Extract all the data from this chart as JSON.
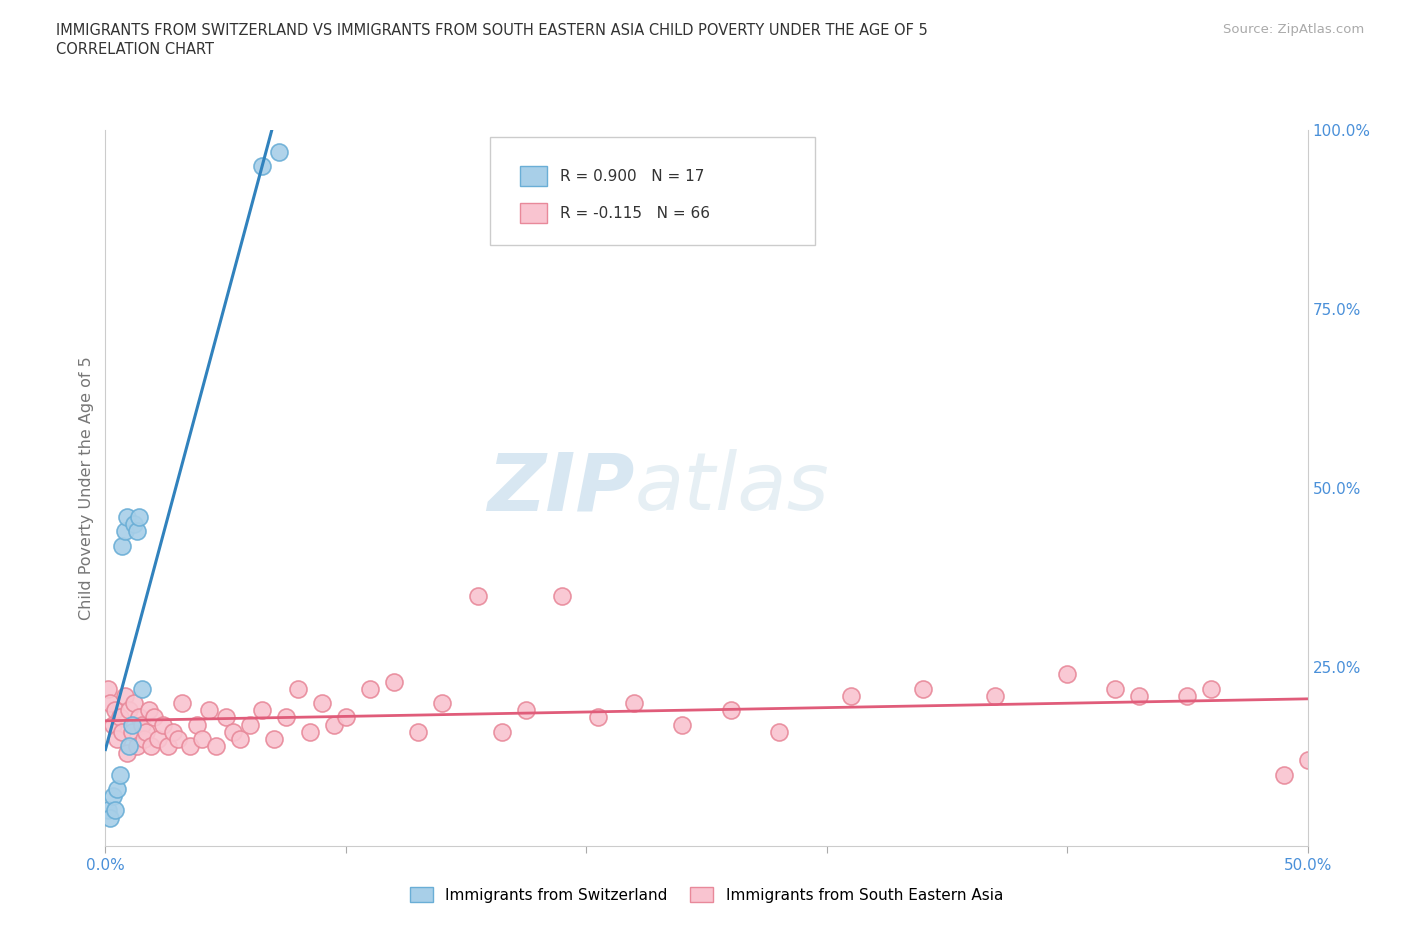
{
  "title_line1": "IMMIGRANTS FROM SWITZERLAND VS IMMIGRANTS FROM SOUTH EASTERN ASIA CHILD POVERTY UNDER THE AGE OF 5",
  "title_line2": "CORRELATION CHART",
  "source_text": "Source: ZipAtlas.com",
  "ylabel": "Child Poverty Under the Age of 5",
  "xlim": [
    0.0,
    0.5
  ],
  "ylim": [
    0.0,
    1.0
  ],
  "x_tick_positions": [
    0.0,
    0.1,
    0.2,
    0.3,
    0.4,
    0.5
  ],
  "x_tick_labels": [
    "0.0%",
    "",
    "",
    "",
    "",
    "50.0%"
  ],
  "y_ticks_right": [
    0.0,
    0.25,
    0.5,
    0.75,
    1.0
  ],
  "y_tick_labels_right": [
    "",
    "25.0%",
    "50.0%",
    "75.0%",
    "100.0%"
  ],
  "blue_color": "#a8cfe8",
  "blue_edge": "#6aaed6",
  "pink_color": "#f9c4d0",
  "pink_edge": "#e8899a",
  "regression_blue_color": "#3182bd",
  "regression_pink_color": "#e05c7a",
  "legend_R_blue": "R = 0.900",
  "legend_N_blue": "N = 17",
  "legend_R_pink": "R = -0.115",
  "legend_N_pink": "N = 66",
  "legend_label_blue": "Immigrants from Switzerland",
  "legend_label_pink": "Immigrants from South Eastern Asia",
  "watermark_zip": "ZIP",
  "watermark_atlas": "atlas",
  "background_color": "#ffffff",
  "grid_color": "#cccccc",
  "title_color": "#333333",
  "axis_label_color": "#777777",
  "tick_color": "#4a90d9",
  "blue_x": [
    0.001,
    0.002,
    0.003,
    0.004,
    0.005,
    0.006,
    0.007,
    0.008,
    0.009,
    0.01,
    0.011,
    0.012,
    0.013,
    0.014,
    0.015,
    0.065,
    0.072
  ],
  "blue_y": [
    0.05,
    0.04,
    0.07,
    0.05,
    0.08,
    0.1,
    0.42,
    0.44,
    0.46,
    0.14,
    0.17,
    0.45,
    0.44,
    0.46,
    0.22,
    0.95,
    0.97
  ],
  "pink_x": [
    0.001,
    0.002,
    0.003,
    0.004,
    0.005,
    0.006,
    0.007,
    0.008,
    0.009,
    0.01,
    0.011,
    0.012,
    0.013,
    0.014,
    0.015,
    0.016,
    0.017,
    0.018,
    0.019,
    0.02,
    0.022,
    0.024,
    0.026,
    0.028,
    0.03,
    0.032,
    0.035,
    0.038,
    0.04,
    0.043,
    0.046,
    0.05,
    0.053,
    0.056,
    0.06,
    0.065,
    0.07,
    0.075,
    0.08,
    0.085,
    0.09,
    0.095,
    0.1,
    0.11,
    0.12,
    0.13,
    0.14,
    0.155,
    0.165,
    0.175,
    0.19,
    0.205,
    0.22,
    0.24,
    0.26,
    0.28,
    0.31,
    0.34,
    0.37,
    0.4,
    0.43,
    0.46,
    0.49,
    0.5,
    0.42,
    0.45
  ],
  "pink_y": [
    0.22,
    0.2,
    0.17,
    0.19,
    0.15,
    0.18,
    0.16,
    0.21,
    0.13,
    0.19,
    0.16,
    0.2,
    0.14,
    0.18,
    0.17,
    0.15,
    0.16,
    0.19,
    0.14,
    0.18,
    0.15,
    0.17,
    0.14,
    0.16,
    0.15,
    0.2,
    0.14,
    0.17,
    0.15,
    0.19,
    0.14,
    0.18,
    0.16,
    0.15,
    0.17,
    0.19,
    0.15,
    0.18,
    0.22,
    0.16,
    0.2,
    0.17,
    0.18,
    0.22,
    0.23,
    0.16,
    0.2,
    0.35,
    0.16,
    0.19,
    0.35,
    0.18,
    0.2,
    0.17,
    0.19,
    0.16,
    0.21,
    0.22,
    0.21,
    0.24,
    0.21,
    0.22,
    0.1,
    0.12,
    0.22,
    0.21
  ]
}
